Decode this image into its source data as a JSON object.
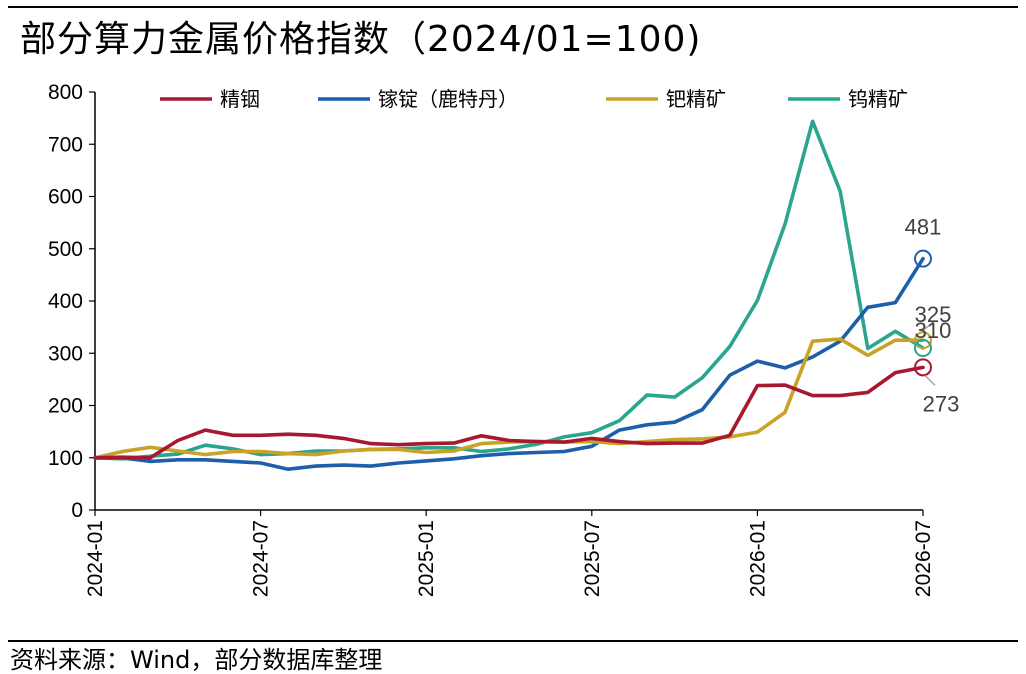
{
  "title": "部分算力金属价格指数（2024/01=100)",
  "source": "资料来源：Wind，部分数据库整理",
  "chart_data": {
    "type": "line",
    "title": "部分算力金属价格指数（2024/01=100)",
    "xlabel": "",
    "ylabel": "",
    "ylim": [
      0,
      800
    ],
    "yticks": [
      0,
      100,
      200,
      300,
      400,
      500,
      600,
      700,
      800
    ],
    "xtick_labels": [
      "2024-01",
      "2024-07",
      "2025-01",
      "2025-07",
      "2026-01",
      "2026-07"
    ],
    "x": [
      "2024-01",
      "2024-02",
      "2024-03",
      "2024-04",
      "2024-05",
      "2024-06",
      "2024-07",
      "2024-08",
      "2024-09",
      "2024-10",
      "2024-11",
      "2024-12",
      "2025-01",
      "2025-02",
      "2025-03",
      "2025-04",
      "2025-05",
      "2025-06",
      "2025-07",
      "2025-08",
      "2025-09",
      "2025-10",
      "2025-11",
      "2025-12",
      "2026-01",
      "2026-02",
      "2026-03",
      "2026-04",
      "2026-05",
      "2026-06",
      "2026-07"
    ],
    "legend_position": "top",
    "grid": false,
    "series": [
      {
        "name": "精铟",
        "color": "#A6192E",
        "values": [
          100,
          101,
          100,
          133,
          153,
          143,
          143,
          145,
          143,
          137,
          127,
          125,
          127,
          128,
          142,
          133,
          131,
          130,
          137,
          131,
          127,
          128,
          128,
          143,
          238,
          239,
          219,
          219,
          225,
          263,
          273
        ]
      },
      {
        "name": "镓锭（鹿特丹）",
        "color": "#1F5FAA",
        "values": [
          100,
          100,
          93,
          96,
          96,
          93,
          90,
          78,
          84,
          86,
          84,
          90,
          94,
          98,
          104,
          108,
          110,
          112,
          122,
          153,
          163,
          168,
          192,
          258,
          285,
          272,
          293,
          323,
          388,
          397,
          481
        ]
      },
      {
        "name": "钯精矿",
        "color": "#C9A227",
        "values": [
          100,
          112,
          120,
          113,
          106,
          112,
          112,
          108,
          106,
          113,
          116,
          116,
          110,
          113,
          127,
          130,
          131,
          130,
          131,
          127,
          131,
          135,
          136,
          140,
          149,
          187,
          323,
          327,
          296,
          325,
          325
        ]
      },
      {
        "name": "钨精矿",
        "color": "#2AA58E",
        "values": [
          100,
          98,
          103,
          107,
          124,
          117,
          106,
          108,
          113,
          113,
          116,
          117,
          119,
          119,
          112,
          117,
          126,
          140,
          148,
          171,
          220,
          216,
          253,
          313,
          401,
          547,
          744,
          610,
          309,
          342,
          310
        ]
      }
    ],
    "end_labels": [
      {
        "series": "镓锭（鹿特丹）",
        "text": "481"
      },
      {
        "series": "钯精矿",
        "text": "325"
      },
      {
        "series": "钨精矿",
        "text": "310"
      },
      {
        "series": "精铟",
        "text": "273"
      }
    ]
  }
}
